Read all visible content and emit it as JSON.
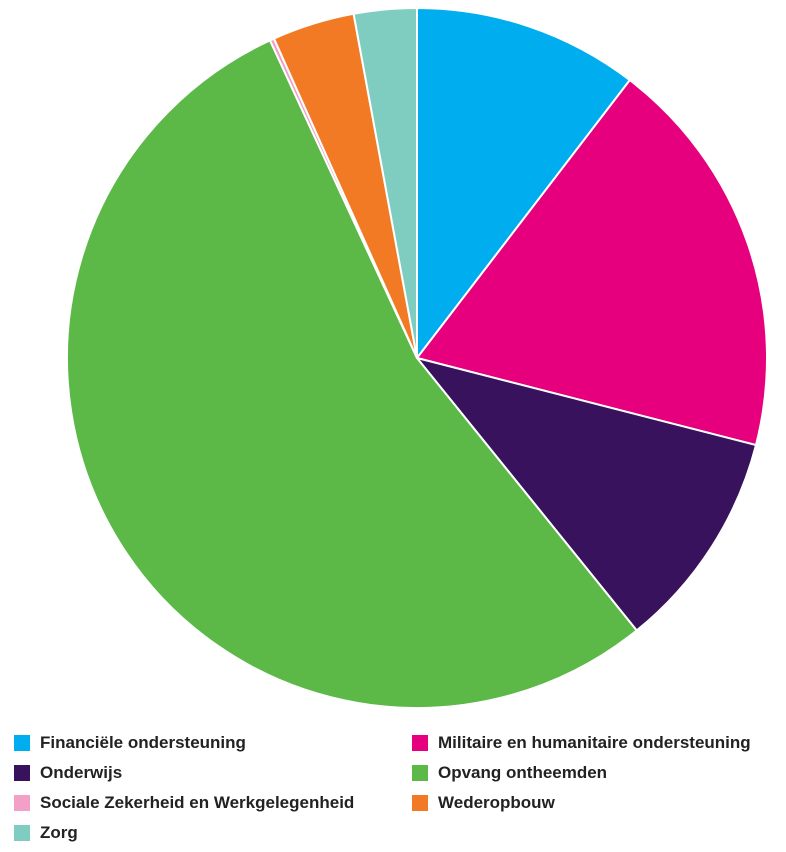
{
  "chart_data": {
    "type": "pie",
    "title": "",
    "start_angle": "12 o'clock",
    "direction": "clockwise",
    "legend_position": "bottom",
    "slices": [
      {
        "label": "Financiële ondersteuning",
        "value": 10.4,
        "color": "#00adef"
      },
      {
        "label": "Militaire en humanitaire ondersteuning",
        "value": 18.6,
        "color": "#e6007e"
      },
      {
        "label": "Onderwijs",
        "value": 10.2,
        "color": "#39125e"
      },
      {
        "label": "Opvang ontheemden",
        "value": 53.9,
        "color": "#5cb947"
      },
      {
        "label": "Sociale Zekerheid en Werkgelegenheid",
        "value": 0.2,
        "color": "#f39fc7"
      },
      {
        "label": "Wederopbouw",
        "value": 3.8,
        "color": "#f37a25"
      },
      {
        "label": "Zorg",
        "value": 2.9,
        "color": "#7fcdc1"
      }
    ]
  }
}
